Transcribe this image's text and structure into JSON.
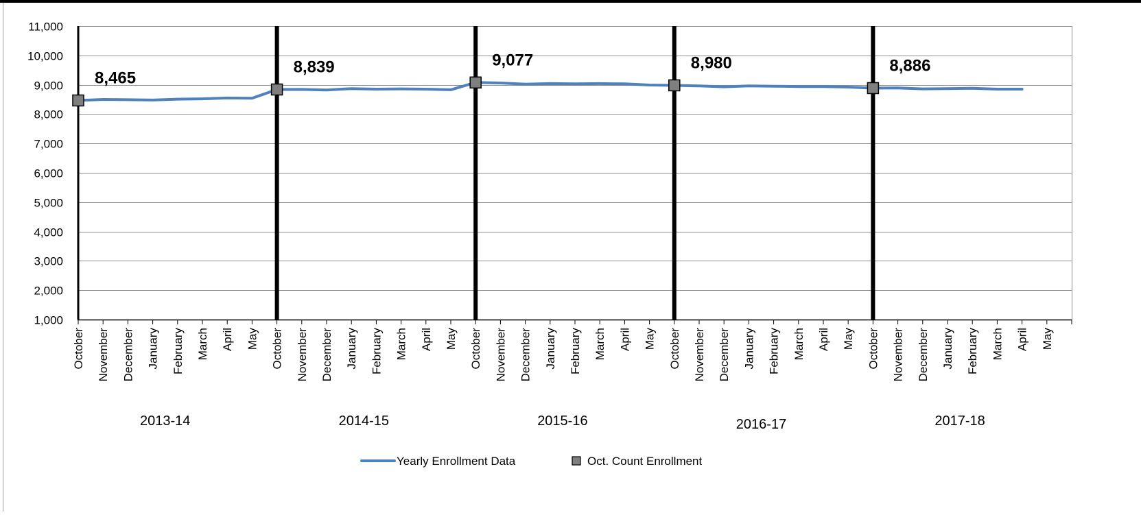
{
  "chart_data": {
    "type": "line",
    "title": "",
    "xlabel": "",
    "ylabel": "",
    "ylim": [
      1000,
      11000
    ],
    "yticks": [
      1000,
      2000,
      3000,
      4000,
      5000,
      6000,
      7000,
      8000,
      9000,
      10000,
      11000
    ],
    "ytick_labels": [
      "1,000",
      "2,000",
      "3,000",
      "4,000",
      "5,000",
      "6,000",
      "7,000",
      "8,000",
      "9,000",
      "10,000",
      "11,000"
    ],
    "grid": true,
    "legend_position": "bottom",
    "groups": [
      {
        "label": "2013-14",
        "months": [
          "October",
          "November",
          "December",
          "January",
          "February",
          "March",
          "April",
          "May"
        ]
      },
      {
        "label": "2014-15",
        "months": [
          "October",
          "November",
          "December",
          "January",
          "February",
          "March",
          "April",
          "May"
        ]
      },
      {
        "label": "2015-16",
        "months": [
          "October",
          "November",
          "December",
          "January",
          "February",
          "March",
          "April",
          "May"
        ]
      },
      {
        "label": "2016-17",
        "months": [
          "October",
          "November",
          "December",
          "January",
          "February",
          "March",
          "April",
          "May"
        ]
      },
      {
        "label": "2017-18",
        "months": [
          "October",
          "November",
          "December",
          "January",
          "February",
          "March",
          "April",
          "May"
        ]
      }
    ],
    "series": [
      {
        "name": "Yearly Enrollment Data",
        "type": "line",
        "color": "#4f81bd",
        "values": [
          8465,
          8500,
          8490,
          8480,
          8510,
          8520,
          8550,
          8540,
          8839,
          8840,
          8820,
          8870,
          8850,
          8860,
          8850,
          8830,
          9077,
          9060,
          9020,
          9040,
          9030,
          9040,
          9030,
          8990,
          8980,
          8960,
          8930,
          8960,
          8950,
          8940,
          8940,
          8920,
          8886,
          8890,
          8860,
          8870,
          8880,
          8850,
          8850,
          null
        ]
      },
      {
        "name": "Oct. Count Enrollment",
        "type": "marker",
        "color": "#7f7f7f",
        "points": [
          {
            "index": 0,
            "value": 8465,
            "label": "8,465"
          },
          {
            "index": 8,
            "value": 8839,
            "label": "8,839"
          },
          {
            "index": 16,
            "value": 9077,
            "label": "9,077"
          },
          {
            "index": 24,
            "value": 8980,
            "label": "8,980"
          },
          {
            "index": 32,
            "value": 8886,
            "label": "8,886"
          }
        ]
      }
    ]
  }
}
